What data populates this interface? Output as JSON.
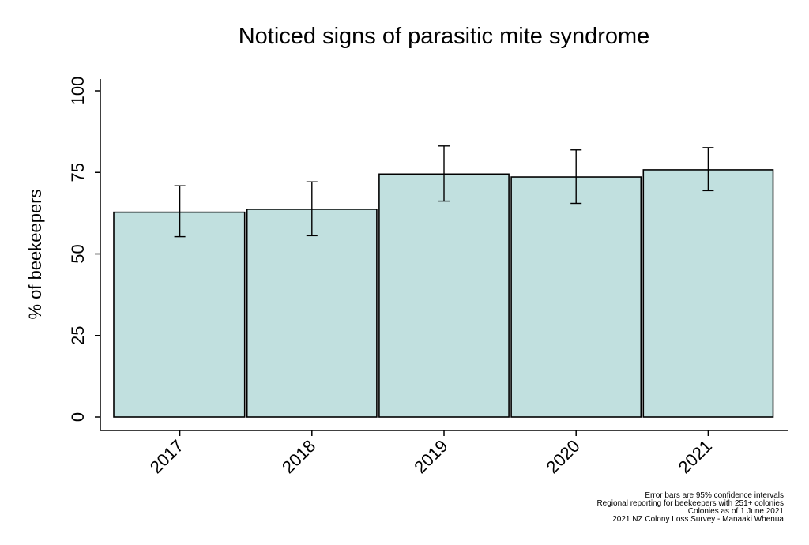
{
  "chart_data": {
    "type": "bar",
    "title": "Noticed signs of parasitic mite syndrome",
    "xlabel": "",
    "ylabel": "% of beekeepers",
    "categories": [
      "2017",
      "2018",
      "2019",
      "2020",
      "2021"
    ],
    "values": [
      62.8,
      63.7,
      74.5,
      73.6,
      75.8
    ],
    "error_low": [
      55.3,
      55.6,
      66.2,
      65.5,
      69.4
    ],
    "error_high": [
      70.9,
      72.1,
      83.1,
      81.9,
      82.6
    ],
    "ylim": [
      0,
      100
    ],
    "yticks": [
      0,
      25,
      50,
      75,
      100
    ],
    "grid": false,
    "bar_color": "#c1e0df",
    "notes": [
      "Error bars are 95% confidence intervals",
      "Regional reporting for beekeepers with 251+ colonies",
      "Colonies as of 1 June 2021",
      "2021 NZ Colony Loss Survey - Manaaki Whenua"
    ]
  }
}
